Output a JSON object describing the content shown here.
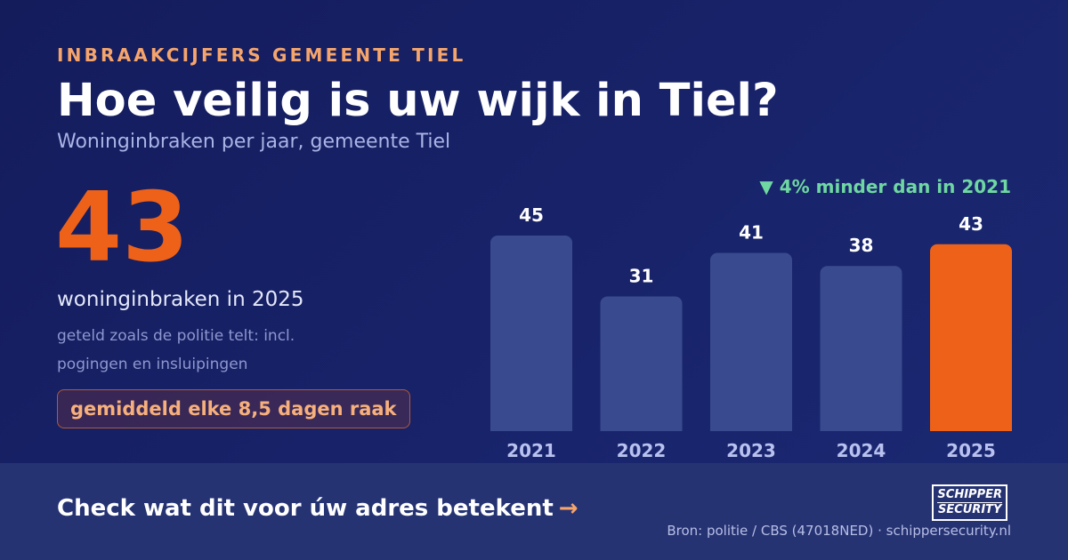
{
  "header": {
    "kicker": "INBRAAKCIJFERS GEMEENTE TIEL",
    "title": "Hoe veilig is uw wijk in Tiel?",
    "subtitle": "Woninginbraken per jaar, gemeente Tiel"
  },
  "highlight": {
    "number": "43",
    "label": "woninginbraken in 2025",
    "note": "geteld zoals de politie telt: incl. pogingen en insluipingen",
    "pill": "gemiddeld elke 8,5 dagen raak"
  },
  "delta": "▼ 4% minder dan in 2021",
  "footer": {
    "cta": "Check wat dit voor úw adres betekent",
    "arrow": "→",
    "logo_line1": "SCHIPPER",
    "logo_line2": "SECURITY",
    "source": "Bron: politie / CBS (47018NED) · schippersecurity.nl"
  },
  "colors": {
    "bar": "#394a8e",
    "bar_highlight": "#ee6118",
    "value_label": "#ffffff",
    "tick_label": "#b8c1ef"
  },
  "chart_data": {
    "type": "bar",
    "categories": [
      "2021",
      "2022",
      "2023",
      "2024",
      "2025"
    ],
    "values": [
      45,
      31,
      41,
      38,
      43
    ],
    "highlight_category": "2025",
    "title": "",
    "xlabel": "",
    "ylabel": "",
    "ylim": [
      0,
      45
    ],
    "grid": false,
    "legend": "none"
  }
}
